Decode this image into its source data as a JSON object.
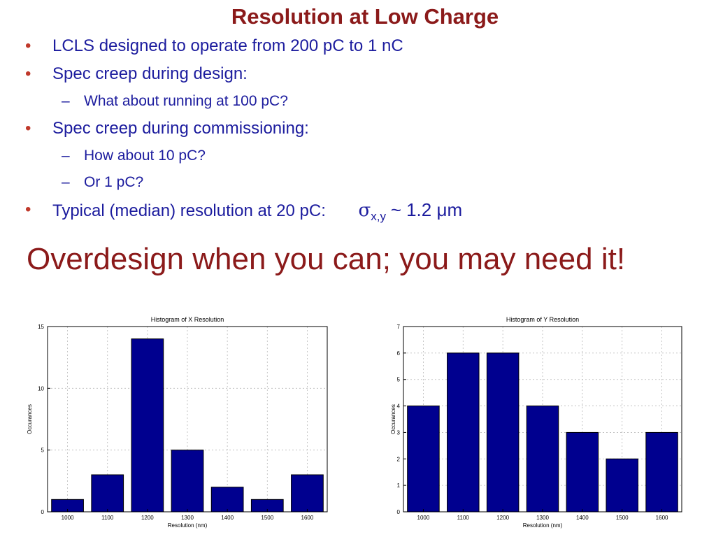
{
  "title": "Resolution at Low Charge",
  "bullets": {
    "b1": "LCLS designed to operate from 200 pC to 1 nC",
    "b2": "Spec creep during design:",
    "b2_sub1": "What about running at 100 pC?",
    "b3": "Spec creep during commissioning:",
    "b3_sub1": "How about 10 pC?",
    "b3_sub2": "Or 1 pC?",
    "b4": "Typical (median) resolution at 20 pC:",
    "sigma_symbol": "σ",
    "sigma_sub": "x,y",
    "sigma_value": "~ 1.2 μm"
  },
  "tagline": "Overdesign when you can; you may need it!",
  "colors": {
    "title": "#8b1a1a",
    "text": "#1c1c9e",
    "bullet": "#c0392b",
    "bar": "#00008f"
  },
  "chart_data": [
    {
      "type": "bar",
      "title": "Histogram of X Resolution",
      "xlabel": "Resolution (nm)",
      "ylabel": "Occurances",
      "categories": [
        "1000",
        "1100",
        "1200",
        "1300",
        "1400",
        "1500",
        "1600"
      ],
      "values": [
        1,
        3,
        14,
        5,
        2,
        1,
        3
      ],
      "ylim": [
        0,
        15
      ],
      "yticks": [
        0,
        5,
        10,
        15
      ],
      "grid": true
    },
    {
      "type": "bar",
      "title": "Histogram of Y Resolution",
      "xlabel": "Resolution (nm)",
      "ylabel": "Occurances",
      "categories": [
        "1000",
        "1100",
        "1200",
        "1300",
        "1400",
        "1500",
        "1600"
      ],
      "values": [
        4,
        6,
        6,
        4,
        3,
        2,
        3
      ],
      "ylim": [
        0,
        7
      ],
      "yticks": [
        0,
        1,
        2,
        3,
        4,
        5,
        6,
        7
      ],
      "grid": true
    }
  ]
}
